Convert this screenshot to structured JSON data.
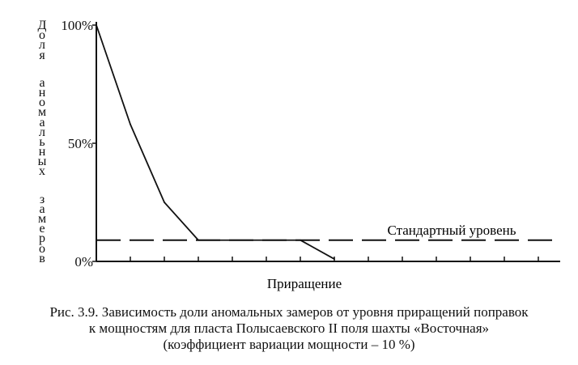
{
  "chart_data": {
    "type": "line",
    "title": "",
    "xlabel": "Приращение",
    "ylabel": "Доля аномальных замеров",
    "yticks": [
      "100%",
      "50%",
      "0%"
    ],
    "ytick_values": [
      100,
      50,
      0
    ],
    "ylim": [
      0,
      100
    ],
    "xlim": [
      0,
      14
    ],
    "x_tick_count": 14,
    "grid": false,
    "series": [
      {
        "values": [
          {
            "x": 0,
            "y": 100
          },
          {
            "x": 1,
            "y": 58
          },
          {
            "x": 2,
            "y": 25
          },
          {
            "x": 3,
            "y": 9
          },
          {
            "x": 6,
            "y": 9
          },
          {
            "x": 7,
            "y": 1
          }
        ],
        "style": "solid"
      }
    ],
    "reference_line": {
      "label": "Стандартный уровень",
      "y": 9,
      "style": "dashed"
    }
  },
  "caption": {
    "line1": "Рис. 3.9. Зависимость доли аномальных замеров от уровня приращений поправок",
    "line2": "к мощностям для пласта Полысаевского II поля шахты «Восточная»",
    "line3": "(коэффициент вариации мощности – 10 %)"
  }
}
